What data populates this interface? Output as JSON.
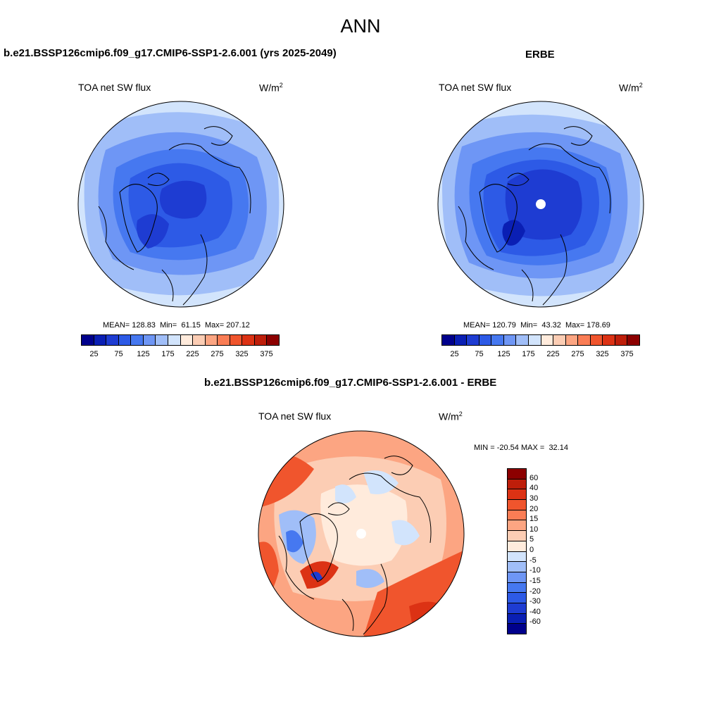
{
  "figure_title": "ANN",
  "panel1": {
    "title": "b.e21.BSSP126cmip6.f09_g17.CMIP6-SSP1-2.6.001 (yrs 2025-2049)",
    "variable": "TOA net SW flux",
    "units": "W/m",
    "units_sup": "2",
    "stats": {
      "mean_label": "MEAN=",
      "mean": "128.83",
      "min_label": "Min=",
      "min": "61.15",
      "max_label": "Max=",
      "max": "207.12"
    }
  },
  "panel2": {
    "title": "ERBE",
    "variable": "TOA net SW flux",
    "units": "W/m",
    "units_sup": "2",
    "stats": {
      "mean_label": "MEAN=",
      "mean": "120.79",
      "min_label": "Min=",
      "min": "43.32",
      "max_label": "Max=",
      "max": "178.69"
    }
  },
  "panel3": {
    "title": "b.e21.BSSP126cmip6.f09_g17.CMIP6-SSP1-2.6.001 - ERBE",
    "variable": "TOA net SW flux",
    "units": "W/m",
    "units_sup": "2",
    "minmax": {
      "min_label": "MIN =",
      "min": "-20.54",
      "max_label": "MAX =",
      "max": "32.14"
    }
  },
  "colorbar_abs": {
    "colors": [
      "#00008c",
      "#0a1fb4",
      "#1e3cd2",
      "#2d5ae6",
      "#4678f0",
      "#6e96f5",
      "#a0bef8",
      "#d2e4fc",
      "#ffebdc",
      "#fccdb4",
      "#fca582",
      "#fa7d55",
      "#f0552d",
      "#dc3214",
      "#be1e0a",
      "#8c0000"
    ],
    "labels": [
      "25",
      "75",
      "125",
      "175",
      "225",
      "275",
      "325",
      "375"
    ]
  },
  "colorbar_diff": {
    "colors": [
      "#8c0000",
      "#be1e0a",
      "#dc3214",
      "#f0552d",
      "#fa7d55",
      "#fca582",
      "#fccdb4",
      "#ffebdc",
      "#d2e4fc",
      "#a0bef8",
      "#6e96f5",
      "#4678f0",
      "#2d5ae6",
      "#1e3cd2",
      "#0a1fb4",
      "#00008c"
    ],
    "labels": [
      "60",
      "40",
      "30",
      "20",
      "15",
      "10",
      "5",
      "0",
      "-5",
      "-10",
      "-15",
      "-20",
      "-30",
      "-40",
      "-60"
    ]
  }
}
